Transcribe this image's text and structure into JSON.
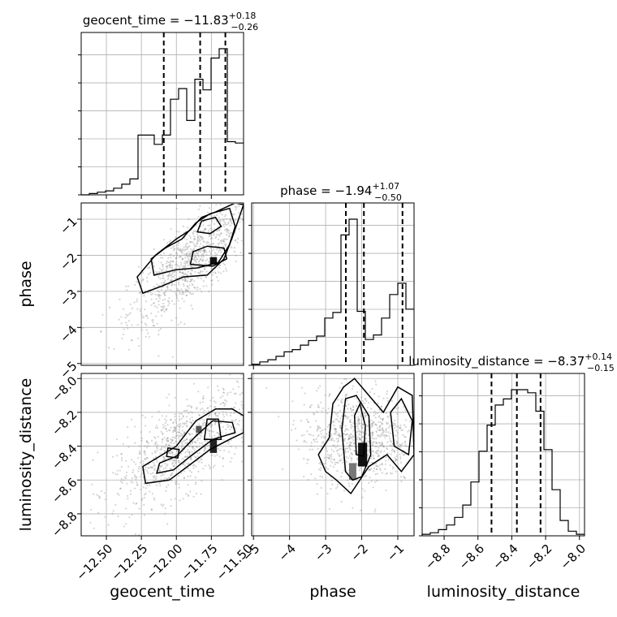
{
  "chart_data": {
    "type": "corner",
    "parameters": [
      {
        "name": "geocent_time",
        "range": [
          -12.68,
          -11.52
        ],
        "ticks": [
          -12.5,
          -12.25,
          -12.0,
          -11.75,
          -11.5
        ],
        "tick_labels": [
          "−12.50",
          "−12.25",
          "−12.00",
          "−11.75",
          "−11.50"
        ],
        "median": -11.83,
        "q_low": -12.09,
        "q_high": -11.65,
        "title_value": "−11.83",
        "title_plus": "+0.18",
        "title_minus": "−0.26"
      },
      {
        "name": "phase",
        "range": [
          -5.05,
          -0.55
        ],
        "ticks": [
          -5,
          -4,
          -3,
          -2,
          -1
        ],
        "tick_labels": [
          "−5",
          "−4",
          "−3",
          "−2",
          "−1"
        ],
        "median": -1.94,
        "q_low": -2.44,
        "q_high": -0.87,
        "title_value": "−1.94",
        "title_plus": "+1.07",
        "title_minus": "−0.50"
      },
      {
        "name": "luminosity_distance",
        "range": [
          -8.93,
          -7.97
        ],
        "ticks": [
          -8.8,
          -8.6,
          -8.4,
          -8.2,
          -8.0
        ],
        "tick_labels": [
          "−8.8",
          "−8.6",
          "−8.4",
          "−8.2",
          "−8.0"
        ],
        "median": -8.37,
        "q_low": -8.52,
        "q_high": -8.23,
        "title_value": "−8.37",
        "title_plus": "+0.14",
        "title_minus": "−0.15"
      }
    ],
    "histograms": [
      {
        "param": "geocent_time",
        "edges": [
          -12.68,
          -12.622,
          -12.564,
          -12.506,
          -12.448,
          -12.39,
          -12.332,
          -12.274,
          -12.216,
          -12.158,
          -12.1,
          -12.042,
          -11.984,
          -11.926,
          -11.868,
          -11.81,
          -11.752,
          -11.694,
          -11.636,
          -11.578,
          -11.52
        ],
        "counts": [
          0,
          0.01,
          0.02,
          0.03,
          0.05,
          0.08,
          0.12,
          0.45,
          0.45,
          0.38,
          0.45,
          0.72,
          0.8,
          0.56,
          0.87,
          0.79,
          1.03,
          1.1,
          0.4,
          0.39
        ]
      },
      {
        "param": "phase",
        "edges": [
          -5.05,
          -4.825,
          -4.6,
          -4.375,
          -4.15,
          -3.925,
          -3.7,
          -3.475,
          -3.25,
          -3.025,
          -2.8,
          -2.575,
          -2.35,
          -2.125,
          -1.9,
          -1.675,
          -1.45,
          -1.225,
          -1,
          -0.775,
          -0.55
        ],
        "counts": [
          0.01,
          0.03,
          0.05,
          0.08,
          0.12,
          0.14,
          0.18,
          0.22,
          0.26,
          0.42,
          0.47,
          1.16,
          1.3,
          0.48,
          0.23,
          0.27,
          0.42,
          0.63,
          0.73,
          0.5
        ]
      },
      {
        "param": "luminosity_distance",
        "edges": [
          -8.93,
          -8.882,
          -8.834,
          -8.786,
          -8.738,
          -8.69,
          -8.642,
          -8.594,
          -8.546,
          -8.498,
          -8.45,
          -8.402,
          -8.354,
          -8.306,
          -8.258,
          -8.21,
          -8.162,
          -8.114,
          -8.066,
          -8.018,
          -7.97
        ],
        "counts": [
          0.01,
          0.02,
          0.04,
          0.07,
          0.12,
          0.2,
          0.35,
          0.55,
          0.72,
          0.85,
          0.89,
          0.95,
          0.95,
          0.93,
          0.81,
          0.56,
          0.3,
          0.1,
          0.03,
          0.01
        ]
      }
    ]
  }
}
